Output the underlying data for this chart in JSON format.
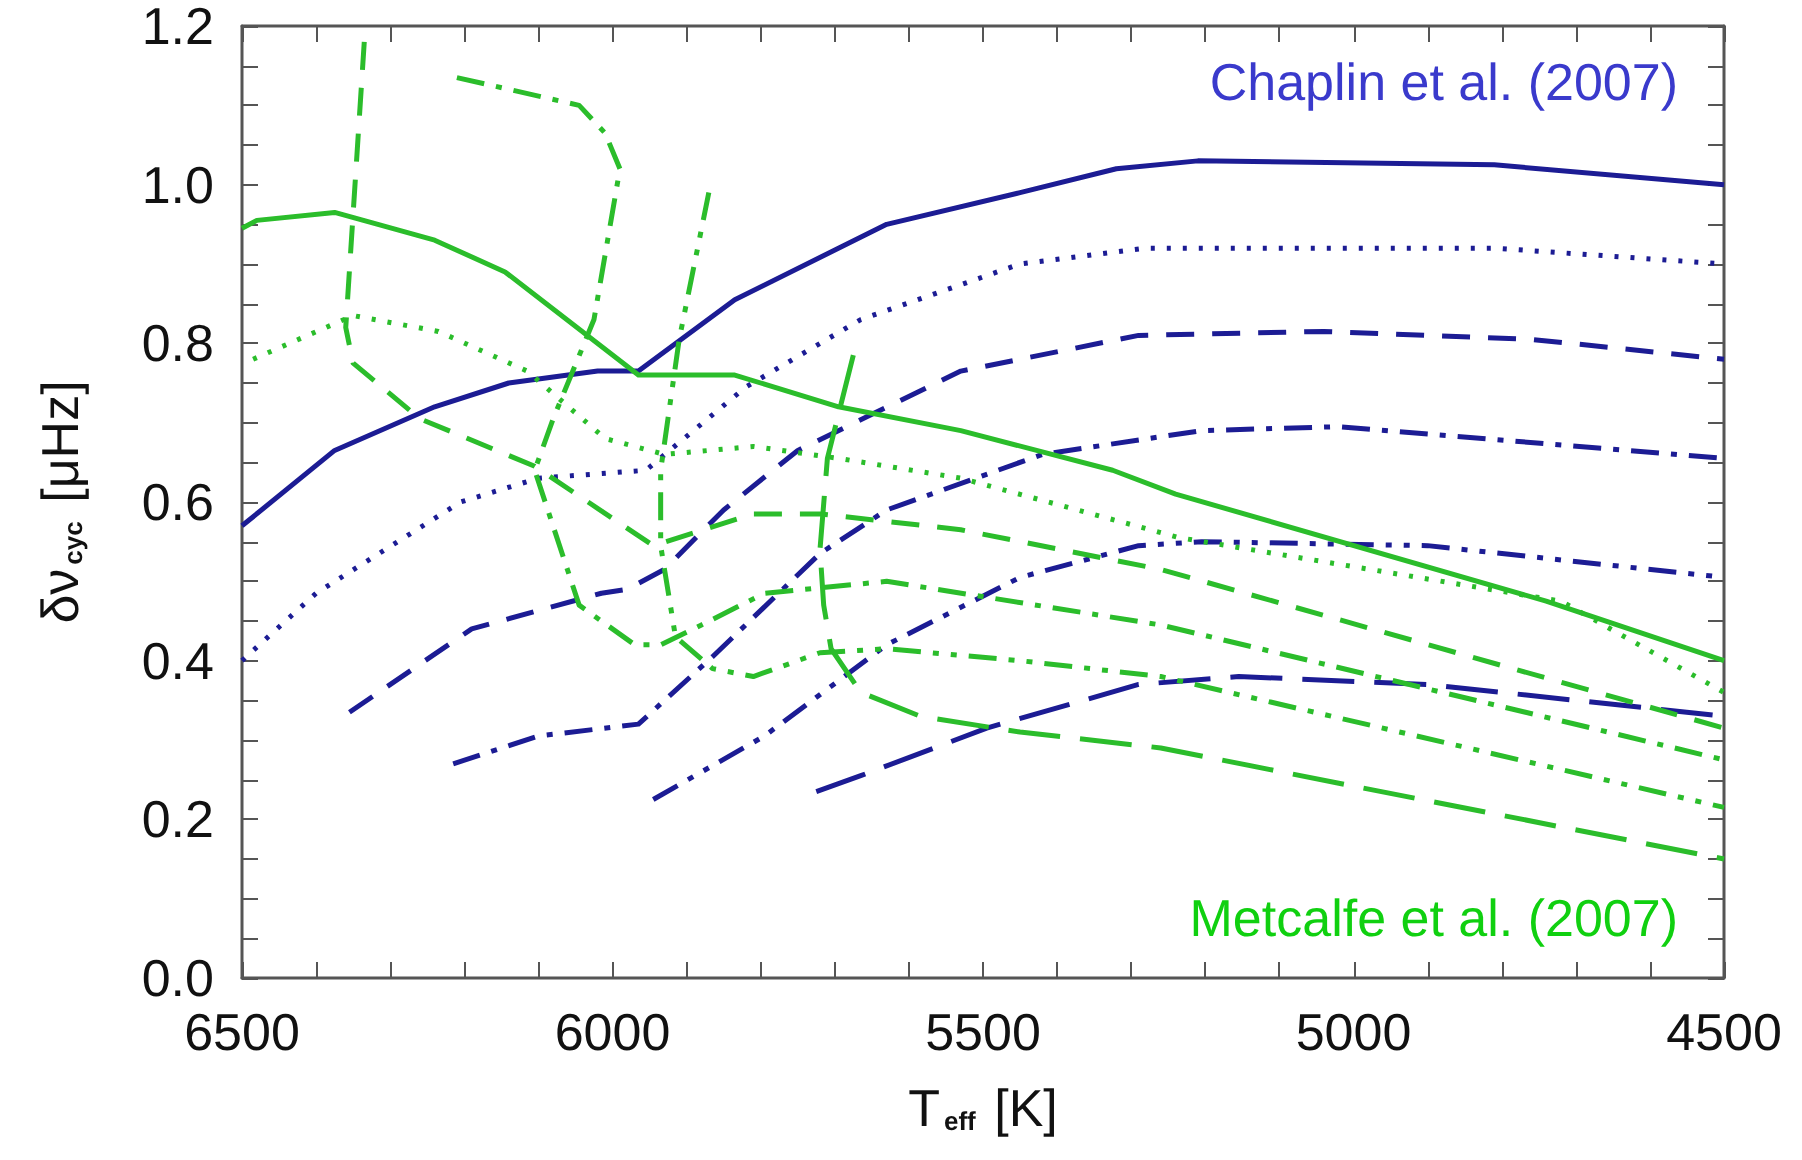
{
  "chart_data": {
    "type": "line",
    "xlabel": "T$_{eff}$ [K]",
    "ylabel": "δν$_{cyc}$ [μHz]",
    "xlim": [
      6500,
      4500
    ],
    "xticks": [
      6500,
      {
        "value": 6400,
        "label": null
      },
      {
        "value": 6300,
        "label": null
      },
      {
        "value": 6200,
        "label": null
      },
      {
        "value": 6100,
        "label": null
      },
      6000,
      {
        "value": 5900,
        "label": null
      },
      {
        "value": 5800,
        "label": null
      },
      {
        "value": 5700,
        "label": null
      },
      {
        "value": 5600,
        "label": null
      },
      5500,
      {
        "value": 5400,
        "label": null
      },
      {
        "value": 5300,
        "label": null
      },
      {
        "value": 5200,
        "label": null
      },
      {
        "value": 5100,
        "label": null
      },
      5000,
      {
        "value": 4900,
        "label": null
      },
      {
        "value": 4800,
        "label": null
      },
      {
        "value": 4700,
        "label": null
      },
      {
        "value": 4600,
        "label": null
      },
      4500
    ],
    "ylim": [
      0,
      1.2
    ],
    "yticks": [
      {
        "value": 0,
        "label": "0.0"
      },
      {
        "value": 0.05,
        "label": null
      },
      {
        "value": 0.1,
        "label": null
      },
      {
        "value": 0.15,
        "label": null
      },
      0.2,
      {
        "value": 0.25,
        "label": null
      },
      {
        "value": 0.3,
        "label": null
      },
      {
        "value": 0.35,
        "label": null
      },
      0.4,
      {
        "value": 0.45,
        "label": null
      },
      {
        "value": 0.5,
        "label": null
      },
      {
        "value": 0.55,
        "label": null
      },
      0.6,
      {
        "value": 0.65,
        "label": null
      },
      {
        "value": 0.7,
        "label": null
      },
      {
        "value": 0.75,
        "label": null
      },
      0.8,
      {
        "value": 0.85,
        "label": null
      },
      {
        "value": 0.9,
        "label": null
      },
      {
        "value": 0.95,
        "label": null
      },
      {
        "value": 1,
        "label": "1.0"
      },
      {
        "value": 1.05,
        "label": null
      },
      {
        "value": 1.1,
        "label": null
      },
      {
        "value": 1.15,
        "label": null
      },
      1.2
    ],
    "grid": false,
    "marker": "none",
    "annotations": [
      "Chaplin et al. (2007)",
      "Metcalfe et al. (2007)"
    ],
    "series": [
      {
        "color": "#1c1c94",
        "line_style": "solid",
        "x": [
          6500,
          6375,
          6240,
          6140,
          6020,
          5965,
          5835,
          5630,
          5450,
          5320,
          5210,
          4810,
          4500
        ],
        "values": [
          0.57,
          0.665,
          0.72,
          0.75,
          0.765,
          0.765,
          0.855,
          0.95,
          0.99,
          1.02,
          1.03,
          1.025,
          1.0
        ]
      },
      {
        "color": "#1c1c94",
        "line_style": "dotted",
        "x": [
          6500,
          6400,
          6205,
          6100,
          5955,
          5820,
          5665,
          5450,
          5280,
          4810,
          4500
        ],
        "values": [
          0.4,
          0.485,
          0.6,
          0.63,
          0.64,
          0.745,
          0.83,
          0.9,
          0.92,
          0.92,
          0.9
        ]
      },
      {
        "color": "#1c1c94",
        "line_style": "dashed",
        "x": [
          6355,
          6190,
          6015,
          5980,
          5930,
          5850,
          5750,
          5530,
          5290,
          5040,
          4760,
          4500
        ],
        "values": [
          0.335,
          0.44,
          0.485,
          0.49,
          0.515,
          0.59,
          0.665,
          0.765,
          0.81,
          0.815,
          0.805,
          0.78
        ]
      },
      {
        "color": "#1c1c94",
        "line_style": "dashdot",
        "x": [
          6215,
          6100,
          5965,
          5865,
          5720,
          5630,
          5420,
          5205,
          5020,
          4500
        ],
        "values": [
          0.27,
          0.305,
          0.32,
          0.405,
          0.535,
          0.59,
          0.66,
          0.69,
          0.695,
          0.655
        ]
      },
      {
        "color": "#1c1c94",
        "line_style": "dashdotdot",
        "x": [
          5945,
          5795,
          5630,
          5450,
          5290,
          5205,
          4900,
          4500
        ],
        "values": [
          0.225,
          0.305,
          0.42,
          0.505,
          0.545,
          0.55,
          0.545,
          0.505
        ]
      },
      {
        "color": "#1c1c94",
        "line_style": "longdash",
        "x": [
          5725,
          5665,
          5495,
          5290,
          5155,
          4900,
          4500
        ],
        "values": [
          0.235,
          0.255,
          0.315,
          0.37,
          0.38,
          0.37,
          0.33
        ]
      },
      {
        "color": "#2bbd2b",
        "line_style": "solid",
        "x": [
          6500,
          6480,
          6375,
          6240,
          6145,
          5965,
          5835,
          5695,
          5530,
          5325,
          5240,
          4740,
          4500
        ],
        "values": [
          0.945,
          0.955,
          0.965,
          0.93,
          0.89,
          0.76,
          0.76,
          0.72,
          0.69,
          0.64,
          0.61,
          0.475,
          0.4
        ]
      },
      {
        "color": "#2bbd2b",
        "line_style": "dotted",
        "x": [
          6485,
          6350,
          6235,
          6115,
          6010,
          5930,
          5810,
          5695,
          5530,
          5235,
          4720,
          4500
        ],
        "values": [
          0.78,
          0.835,
          0.815,
          0.765,
          0.68,
          0.66,
          0.67,
          0.655,
          0.63,
          0.555,
          0.475,
          0.36
        ]
      },
      {
        "color": "#2bbd2b",
        "line_style": "dashed",
        "x": [
          6335,
          6360,
          6350,
          6260,
          6105,
          5945,
          5810,
          5720,
          5530,
          5260,
          4500
        ],
        "values": [
          1.18,
          0.82,
          0.775,
          0.705,
          0.645,
          0.545,
          0.585,
          0.585,
          0.565,
          0.515,
          0.315
        ]
      },
      {
        "color": "#2bbd2b",
        "line_style": "dashdot",
        "x": [
          6210,
          6045,
          6010,
          5990,
          6025,
          6080,
          6105,
          6045,
          5970,
          5935,
          5880,
          5795,
          5630,
          5260,
          4500
        ],
        "values": [
          1.135,
          1.1,
          1.065,
          1.02,
          0.83,
          0.705,
          0.64,
          0.47,
          0.42,
          0.42,
          0.445,
          0.485,
          0.5,
          0.445,
          0.275
        ]
      },
      {
        "color": "#2bbd2b",
        "line_style": "dashdotdot",
        "x": [
          5870,
          5910,
          5935,
          5935,
          5915,
          5865,
          5810,
          5720,
          5630,
          5450,
          5260,
          4500
        ],
        "values": [
          0.99,
          0.805,
          0.64,
          0.545,
          0.43,
          0.39,
          0.38,
          0.41,
          0.415,
          0.4,
          0.38,
          0.215
        ]
      },
      {
        "color": "#2bbd2b",
        "line_style": "longdash",
        "x": [
          5675,
          5710,
          5720,
          5715,
          5705,
          5665,
          5585,
          5450,
          5260,
          4990,
          4500
        ],
        "values": [
          0.785,
          0.655,
          0.54,
          0.47,
          0.415,
          0.36,
          0.33,
          0.31,
          0.29,
          0.24,
          0.15
        ]
      }
    ]
  }
}
